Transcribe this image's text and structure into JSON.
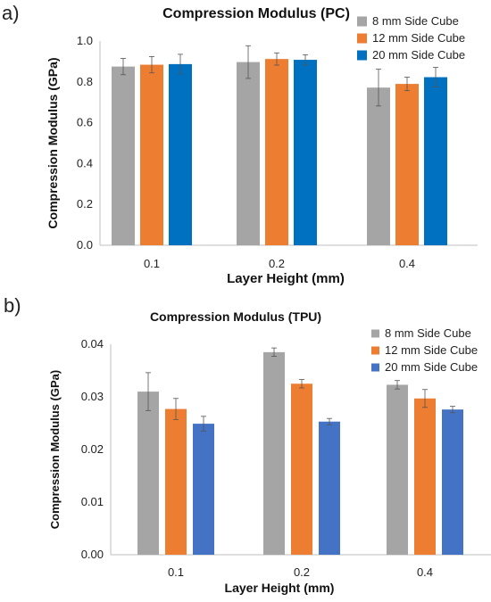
{
  "chart_data": [
    {
      "panel_label": "a)",
      "type": "bar",
      "title": "Compression Modulus (PC)",
      "xlabel": "Layer Height (mm)",
      "ylabel": "Compression Modulus (GPa)",
      "categories": [
        "0.1",
        "0.2",
        "0.4"
      ],
      "ylim": [
        0,
        1.0
      ],
      "yticks": [
        "0.0",
        "0.2",
        "0.4",
        "0.6",
        "0.8",
        "1.0"
      ],
      "grid": false,
      "legend_position": "top-right",
      "series": [
        {
          "name": "8 mm Side Cube",
          "color": "#a5a5a5",
          "values": [
            0.875,
            0.897,
            0.772
          ],
          "errors": [
            0.04,
            0.08,
            0.09
          ]
        },
        {
          "name": "12 mm Side Cube",
          "color": "#ed7d31",
          "values": [
            0.884,
            0.912,
            0.79
          ],
          "errors": [
            0.04,
            0.03,
            0.033
          ]
        },
        {
          "name": "20 mm Side Cube",
          "color": "#0070c0",
          "values": [
            0.887,
            0.908,
            0.823
          ],
          "errors": [
            0.048,
            0.025,
            0.048
          ]
        }
      ]
    },
    {
      "panel_label": "b)",
      "type": "bar",
      "title": "Compression Modulus (TPU)",
      "xlabel": "Layer Height (mm)",
      "ylabel": "Compression Modulus (GPa)",
      "categories": [
        "0.1",
        "0.2",
        "0.4"
      ],
      "ylim": [
        0,
        0.04
      ],
      "yticks": [
        "0.00",
        "0.01",
        "0.02",
        "0.03",
        "0.04"
      ],
      "grid": false,
      "legend_position": "top-right",
      "series": [
        {
          "name": "8 mm Side Cube",
          "color": "#a5a5a5",
          "values": [
            0.031,
            0.0385,
            0.0323
          ],
          "errors": [
            0.0036,
            0.0008,
            0.0008
          ]
        },
        {
          "name": "12 mm Side Cube",
          "color": "#ed7d31",
          "values": [
            0.0277,
            0.0325,
            0.0297
          ],
          "errors": [
            0.002,
            0.0008,
            0.0017
          ]
        },
        {
          "name": "20 mm Side Cube",
          "color": "#4472c4",
          "values": [
            0.0249,
            0.0253,
            0.0276
          ],
          "errors": [
            0.0014,
            0.0006,
            0.0006
          ]
        }
      ]
    }
  ]
}
